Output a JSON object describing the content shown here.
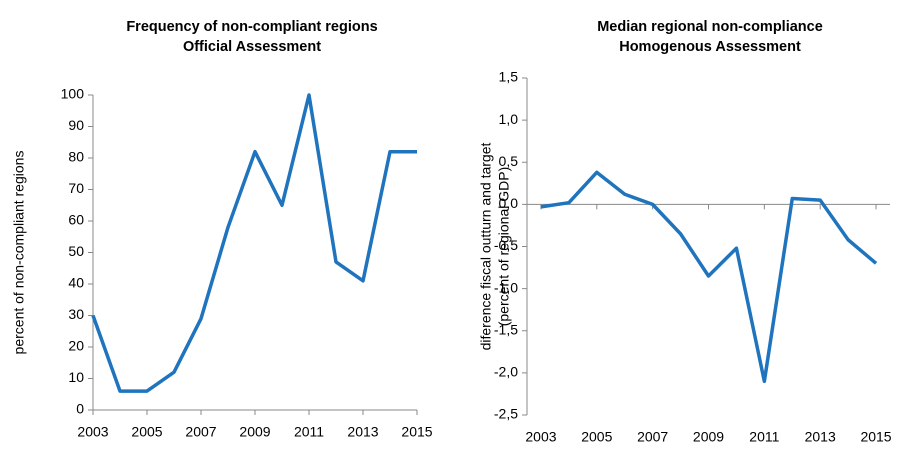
{
  "chart_data": [
    {
      "type": "line",
      "title": [
        "Frequency of non-compliant  regions",
        "Official Assessment"
      ],
      "y_label": "percent of non-compliant regions",
      "x": [
        2003,
        2004,
        2005,
        2006,
        2007,
        2008,
        2009,
        2010,
        2011,
        2012,
        2013,
        2014,
        2015
      ],
      "series": [
        {
          "color": "#1f74bd",
          "values": [
            30,
            6,
            6,
            12,
            29,
            58,
            82,
            65,
            100,
            47,
            41,
            82,
            82
          ]
        }
      ],
      "xlim": [
        2003,
        2015
      ],
      "xticks": [
        2003,
        2005,
        2007,
        2009,
        2011,
        2013,
        2015
      ],
      "ylim": [
        0,
        100
      ],
      "yticks": [
        0,
        10,
        20,
        30,
        40,
        50,
        60,
        70,
        80,
        90,
        100
      ],
      "grid": false
    },
    {
      "type": "line",
      "title": [
        "Median regional non-compliance",
        "Homogenous  Assessment"
      ],
      "y_label": [
        "diference fiscal outturn and target",
        "(percent of regional GDP)"
      ],
      "x": [
        2003,
        2004,
        2005,
        2006,
        2007,
        2008,
        2009,
        2010,
        2011,
        2012,
        2013,
        2014,
        2015
      ],
      "series": [
        {
          "color": "#1f74bd",
          "values": [
            -0.03,
            0.02,
            0.38,
            0.12,
            0.0,
            -0.35,
            -0.85,
            -0.52,
            -2.1,
            0.07,
            0.05,
            -0.42,
            -0.7
          ]
        }
      ],
      "xlim": [
        2002.5,
        2015.5
      ],
      "xticks": [
        2003,
        2005,
        2007,
        2009,
        2011,
        2013,
        2015
      ],
      "ylim": [
        -2.5,
        1.5
      ],
      "yticks": [
        {
          "value": -2.5,
          "label": "-2,5"
        },
        {
          "value": -2,
          "label": "-2,0"
        },
        {
          "value": -1.5,
          "label": "-1,5"
        },
        {
          "value": -1,
          "label": "-1,0"
        },
        {
          "value": -0.5,
          "label": "-0,5"
        },
        {
          "value": 0,
          "label": "0,0"
        },
        {
          "value": 0.5,
          "label": "0,5"
        },
        {
          "value": 1,
          "label": "1,0"
        },
        {
          "value": 1.5,
          "label": "1,5"
        }
      ],
      "grid": false
    }
  ]
}
